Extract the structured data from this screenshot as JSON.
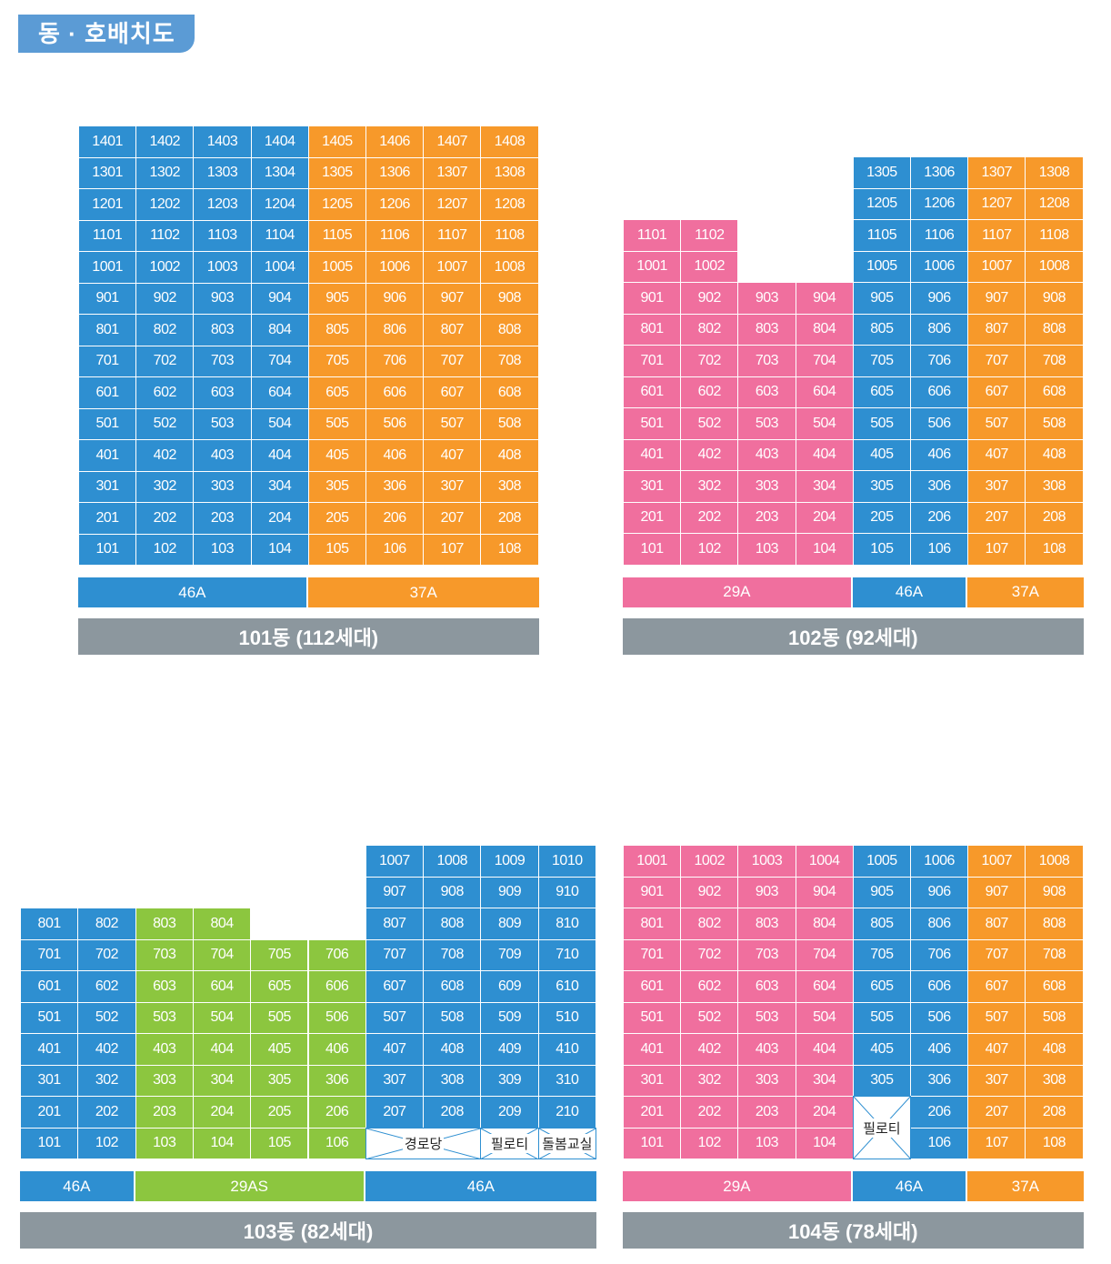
{
  "page_title": "동 · 호배치도",
  "colors": {
    "blue": "#2e8fd1",
    "orange": "#f7992a",
    "pink": "#f06f9e",
    "green": "#8cc63f",
    "caption_bg": "#8c979e",
    "title_bg": "#5b9bd5"
  },
  "buildings": [
    {
      "caption": "101동 (112세대)",
      "rows": [
        [
          "1401",
          "1402",
          "1403",
          "1404",
          "1405",
          "1406",
          "1407",
          "1408"
        ],
        [
          "1301",
          "1302",
          "1303",
          "1304",
          "1305",
          "1306",
          "1307",
          "1308"
        ],
        [
          "1201",
          "1202",
          "1203",
          "1204",
          "1205",
          "1206",
          "1207",
          "1208"
        ],
        [
          "1101",
          "1102",
          "1103",
          "1104",
          "1105",
          "1106",
          "1107",
          "1108"
        ],
        [
          "1001",
          "1002",
          "1003",
          "1004",
          "1005",
          "1006",
          "1007",
          "1008"
        ],
        [
          "901",
          "902",
          "903",
          "904",
          "905",
          "906",
          "907",
          "908"
        ],
        [
          "801",
          "802",
          "803",
          "804",
          "805",
          "806",
          "807",
          "808"
        ],
        [
          "701",
          "702",
          "703",
          "704",
          "705",
          "706",
          "707",
          "708"
        ],
        [
          "601",
          "602",
          "603",
          "604",
          "605",
          "606",
          "607",
          "608"
        ],
        [
          "501",
          "502",
          "503",
          "504",
          "505",
          "506",
          "507",
          "508"
        ],
        [
          "401",
          "402",
          "403",
          "404",
          "405",
          "406",
          "407",
          "408"
        ],
        [
          "301",
          "302",
          "303",
          "304",
          "305",
          "306",
          "307",
          "308"
        ],
        [
          "201",
          "202",
          "203",
          "204",
          "205",
          "206",
          "207",
          "208"
        ],
        [
          "101",
          "102",
          "103",
          "104",
          "105",
          "106",
          "107",
          "108"
        ]
      ],
      "column_colors": [
        "blue",
        "blue",
        "blue",
        "blue",
        "orange",
        "orange",
        "orange",
        "orange"
      ],
      "legend": [
        {
          "label": "46A",
          "color": "blue",
          "span": 4
        },
        {
          "label": "37A",
          "color": "orange",
          "span": 4
        }
      ]
    },
    {
      "caption": "102동 (92세대)",
      "rows": [
        [
          "",
          "",
          "",
          "",
          "1305",
          "1306",
          "1307",
          "1308"
        ],
        [
          "",
          "",
          "",
          "",
          "1205",
          "1206",
          "1207",
          "1208"
        ],
        [
          "1101",
          "1102",
          "",
          "",
          "1105",
          "1106",
          "1107",
          "1108"
        ],
        [
          "1001",
          "1002",
          "",
          "",
          "1005",
          "1006",
          "1007",
          "1008"
        ],
        [
          "901",
          "902",
          "903",
          "904",
          "905",
          "906",
          "907",
          "908"
        ],
        [
          "801",
          "802",
          "803",
          "804",
          "805",
          "806",
          "807",
          "808"
        ],
        [
          "701",
          "702",
          "703",
          "704",
          "705",
          "706",
          "707",
          "708"
        ],
        [
          "601",
          "602",
          "603",
          "604",
          "605",
          "606",
          "607",
          "608"
        ],
        [
          "501",
          "502",
          "503",
          "504",
          "505",
          "506",
          "507",
          "508"
        ],
        [
          "401",
          "402",
          "403",
          "404",
          "405",
          "406",
          "407",
          "408"
        ],
        [
          "301",
          "302",
          "303",
          "304",
          "305",
          "306",
          "307",
          "308"
        ],
        [
          "201",
          "202",
          "203",
          "204",
          "205",
          "206",
          "207",
          "208"
        ],
        [
          "101",
          "102",
          "103",
          "104",
          "105",
          "106",
          "107",
          "108"
        ]
      ],
      "column_colors": [
        "pink",
        "pink",
        "pink",
        "pink",
        "blue",
        "blue",
        "orange",
        "orange"
      ],
      "legend": [
        {
          "label": "29A",
          "color": "pink",
          "span": 4
        },
        {
          "label": "46A",
          "color": "blue",
          "span": 2
        },
        {
          "label": "37A",
          "color": "orange",
          "span": 2
        }
      ]
    },
    {
      "caption": "103동 (82세대)",
      "rows": [
        [
          "",
          "",
          "",
          "",
          "",
          "",
          "1007",
          "1008",
          "1009",
          "1010"
        ],
        [
          "",
          "",
          "",
          "",
          "",
          "",
          "907",
          "908",
          "909",
          "910"
        ],
        [
          "801",
          "802",
          "803",
          "804",
          "",
          "",
          "807",
          "808",
          "809",
          "810"
        ],
        [
          "701",
          "702",
          "703",
          "704",
          "705",
          "706",
          "707",
          "708",
          "709",
          "710"
        ],
        [
          "601",
          "602",
          "603",
          "604",
          "605",
          "606",
          "607",
          "608",
          "609",
          "610"
        ],
        [
          "501",
          "502",
          "503",
          "504",
          "505",
          "506",
          "507",
          "508",
          "509",
          "510"
        ],
        [
          "401",
          "402",
          "403",
          "404",
          "405",
          "406",
          "407",
          "408",
          "409",
          "410"
        ],
        [
          "301",
          "302",
          "303",
          "304",
          "305",
          "306",
          "307",
          "308",
          "309",
          "310"
        ],
        [
          "201",
          "202",
          "203",
          "204",
          "205",
          "206",
          "207",
          "208",
          "209",
          "210"
        ],
        [
          "101",
          "102",
          "103",
          "104",
          "105",
          "106",
          "",
          "",
          "",
          ""
        ]
      ],
      "column_colors": [
        "blue",
        "blue",
        "green",
        "green",
        "green",
        "green",
        "blue",
        "blue",
        "blue",
        "blue"
      ],
      "specials": [
        {
          "label": "경로당",
          "row": 9,
          "col": 6,
          "colspan": 2,
          "rowspan": 1
        },
        {
          "label": "필로티",
          "row": 9,
          "col": 8,
          "colspan": 1,
          "rowspan": 1
        },
        {
          "label": "돌봄교실",
          "row": 9,
          "col": 9,
          "colspan": 1,
          "rowspan": 1
        }
      ],
      "legend": [
        {
          "label": "46A",
          "color": "blue",
          "span": 2
        },
        {
          "label": "29AS",
          "color": "green",
          "span": 4
        },
        {
          "label": "46A",
          "color": "blue",
          "span": 4
        }
      ]
    },
    {
      "caption": "104동 (78세대)",
      "rows": [
        [
          "1001",
          "1002",
          "1003",
          "1004",
          "1005",
          "1006",
          "1007",
          "1008"
        ],
        [
          "901",
          "902",
          "903",
          "904",
          "905",
          "906",
          "907",
          "908"
        ],
        [
          "801",
          "802",
          "803",
          "804",
          "805",
          "806",
          "807",
          "808"
        ],
        [
          "701",
          "702",
          "703",
          "704",
          "705",
          "706",
          "707",
          "708"
        ],
        [
          "601",
          "602",
          "603",
          "604",
          "605",
          "606",
          "607",
          "608"
        ],
        [
          "501",
          "502",
          "503",
          "504",
          "505",
          "506",
          "507",
          "508"
        ],
        [
          "401",
          "402",
          "403",
          "404",
          "405",
          "406",
          "407",
          "408"
        ],
        [
          "301",
          "302",
          "303",
          "304",
          "305",
          "306",
          "307",
          "308"
        ],
        [
          "201",
          "202",
          "203",
          "204",
          "",
          "206",
          "207",
          "208"
        ],
        [
          "101",
          "102",
          "103",
          "104",
          "",
          "106",
          "107",
          "108"
        ]
      ],
      "column_colors": [
        "pink",
        "pink",
        "pink",
        "pink",
        "blue",
        "blue",
        "orange",
        "orange"
      ],
      "specials": [
        {
          "label": "필로티",
          "row": 8,
          "col": 4,
          "colspan": 1,
          "rowspan": 2
        }
      ],
      "legend": [
        {
          "label": "29A",
          "color": "pink",
          "span": 4
        },
        {
          "label": "46A",
          "color": "blue",
          "span": 2
        },
        {
          "label": "37A",
          "color": "orange",
          "span": 2
        }
      ]
    }
  ]
}
